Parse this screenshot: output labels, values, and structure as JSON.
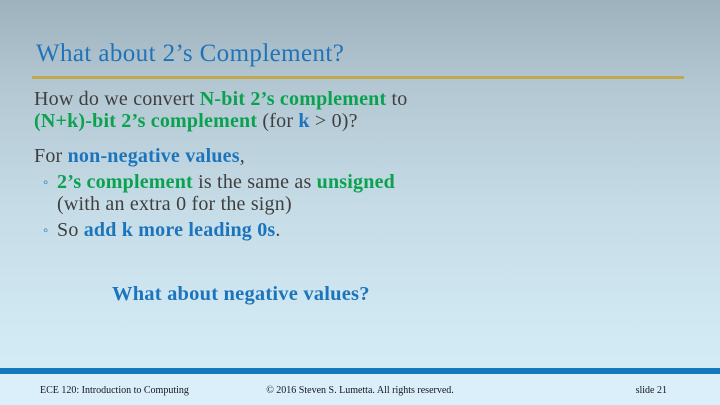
{
  "colors": {
    "bgTop": "#9db2bc",
    "bgBottom": "#d6eef8",
    "titleBlue": "#2173b9",
    "blue": "#1c75bc",
    "green": "#0aa14f",
    "gray": "#3f3f3f",
    "gold": "#c1a850",
    "footerBar": "#1378bd",
    "footerBg": "#daeff9",
    "footerText": "#15151f"
  },
  "slide": {
    "title": "What about 2’s Complement?"
  },
  "body": {
    "para1": {
      "r1": "How do we convert ",
      "r2": "N-bit 2’s complement",
      "r3": " to",
      "r4": "(N+k)-bit 2’s complement",
      "r5": " (for ",
      "r6": "k",
      "r7": " > 0)?"
    },
    "para2": {
      "r1": "For ",
      "r2": "non-negative values",
      "r3": ","
    },
    "bullet1": {
      "marker": "◦",
      "r1": "2’s complement",
      "r2": " is the same as ",
      "r3": "unsigned",
      "r4": "(with an extra 0 for the sign)"
    },
    "bullet2": {
      "marker": "◦",
      "r1": "So ",
      "r2": "add k more leading 0s",
      "r3": "."
    },
    "question": "What about negative values?"
  },
  "footer": {
    "course": "ECE 120: Introduction to Computing",
    "copyright": "© 2016 Steven S. Lumetta.  All rights reserved.",
    "slide_label": "slide 21"
  }
}
